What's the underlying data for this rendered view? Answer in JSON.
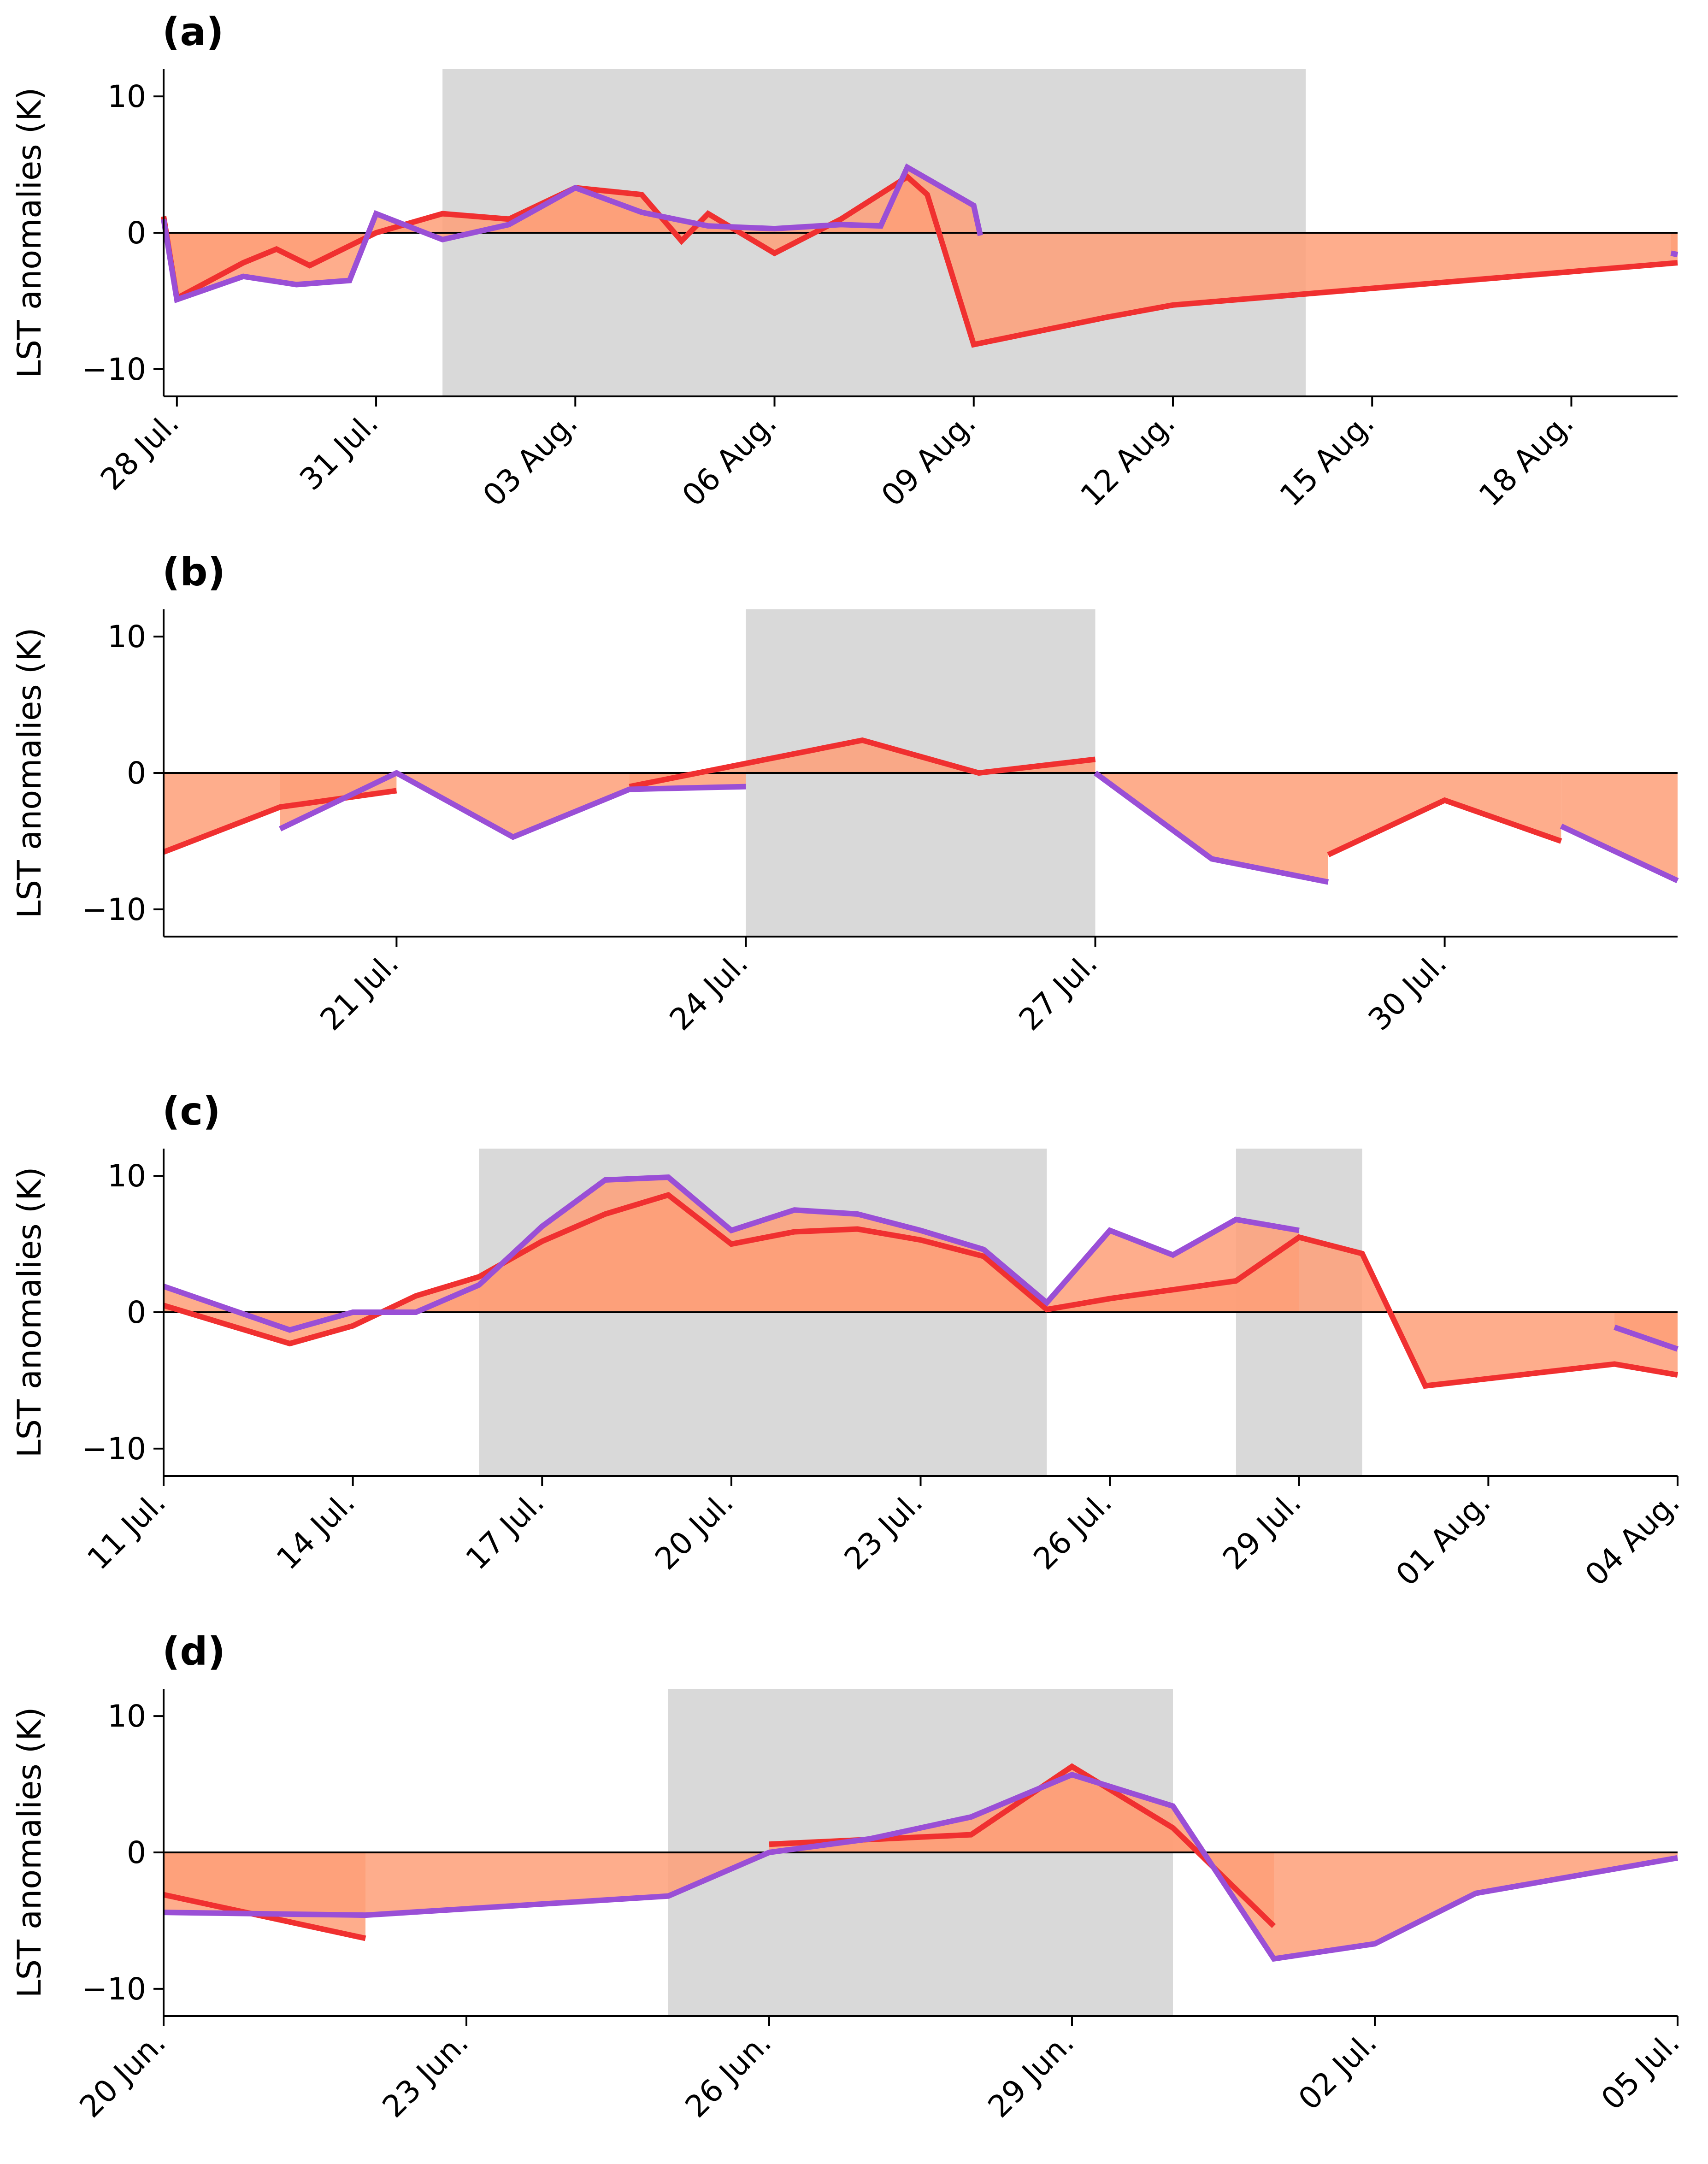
{
  "figure": {
    "type": "time-series panels",
    "colors": {
      "red_series": "#f03030",
      "purple_series": "#9a4fd6",
      "fill": "#fe9f78",
      "shade": "#d9d9d9",
      "zero_line": "#000000"
    }
  },
  "chart_data": [
    {
      "type": "line",
      "panel_label": "(a)",
      "ylabel": "LST anomalies (K)",
      "xlim": [
        27.8,
        50.6
      ],
      "x_unit": "days from 1 Jul (day 1 = 1 Jul.)",
      "ylim": [
        -12,
        12
      ],
      "yticks": [
        10,
        0,
        -10
      ],
      "ytick_labels": [
        "10",
        "0",
        "−10"
      ],
      "xticks": [
        28,
        31,
        34,
        37,
        40,
        43,
        46,
        49
      ],
      "xtick_labels": [
        "28 Jul.",
        "31 Jul.",
        "03 Aug.",
        "06 Aug.",
        "09 Aug.",
        "12 Aug.",
        "15 Aug.",
        "18 Aug."
      ],
      "shaded_periods": [
        [
          32,
          45
        ]
      ],
      "grid": false,
      "series": [
        {
          "color": "red",
          "segments": [
            [
              [
                27.8,
                1.2
              ],
              [
                28,
                -4.8
              ],
              [
                29,
                -2.2
              ],
              [
                29.5,
                -1.2
              ],
              [
                30,
                -2.4
              ],
              [
                31,
                0
              ],
              [
                32,
                1.4
              ],
              [
                33,
                1
              ],
              [
                34,
                3.3
              ],
              [
                35,
                2.8
              ],
              [
                35.6,
                -0.6
              ],
              [
                36,
                1.4
              ],
              [
                37,
                -1.5
              ],
              [
                38,
                1
              ],
              [
                39,
                4.1
              ],
              [
                39.3,
                2.8
              ],
              [
                40,
                -8.2
              ],
              [
                42,
                -6.2
              ],
              [
                43,
                -5.3
              ],
              [
                50.6,
                -2.2
              ]
            ]
          ]
        },
        {
          "color": "purple",
          "segments": [
            [
              [
                27.8,
                1
              ],
              [
                28,
                -4.9
              ],
              [
                29,
                -3.2
              ],
              [
                29.8,
                -3.8
              ],
              [
                30.6,
                -3.5
              ],
              [
                31,
                1.4
              ],
              [
                32,
                -0.5
              ],
              [
                33,
                0.6
              ],
              [
                34,
                3.3
              ],
              [
                35,
                1.5
              ],
              [
                36,
                0.5
              ],
              [
                37,
                0.3
              ],
              [
                38,
                0.6
              ],
              [
                38.6,
                0.5
              ],
              [
                39,
                4.8
              ],
              [
                40,
                2
              ],
              [
                40.1,
                -0.2
              ]
            ],
            [
              [
                50.5,
                -1.5
              ],
              [
                50.6,
                -1.6
              ]
            ]
          ]
        }
      ]
    },
    {
      "type": "line",
      "panel_label": "(b)",
      "ylabel": "LST anomalies (K)",
      "xlim": [
        19,
        32
      ],
      "x_unit": "days from 1 Jul (day 1 = 1 Jul.)",
      "ylim": [
        -12,
        12
      ],
      "yticks": [
        10,
        0,
        -10
      ],
      "ytick_labels": [
        "10",
        "0",
        "−10"
      ],
      "xticks": [
        21,
        24,
        27,
        30
      ],
      "xtick_labels": [
        "21 Jul.",
        "24 Jul.",
        "27 Jul.",
        "30 Jul."
      ],
      "shaded_periods": [
        [
          24,
          27
        ]
      ],
      "grid": false,
      "series": [
        {
          "color": "red",
          "segments": [
            [
              [
                19,
                -5.8
              ],
              [
                20,
                -2.5
              ],
              [
                21,
                -1.3
              ]
            ],
            [
              [
                23,
                -1
              ],
              [
                25,
                2.4
              ],
              [
                26,
                0
              ],
              [
                27,
                1
              ]
            ],
            [
              [
                29,
                -6
              ],
              [
                30,
                -2
              ],
              [
                31,
                -5
              ]
            ]
          ]
        },
        {
          "color": "purple",
          "segments": [
            [
              [
                20,
                -4.1
              ],
              [
                21,
                0
              ],
              [
                22,
                -4.7
              ],
              [
                23,
                -1.2
              ],
              [
                24,
                -1
              ]
            ],
            [
              [
                27,
                0
              ],
              [
                28,
                -6.3
              ],
              [
                29,
                -8
              ]
            ],
            [
              [
                31,
                -3.9
              ],
              [
                32,
                -7.9
              ]
            ]
          ]
        }
      ]
    },
    {
      "type": "line",
      "panel_label": "(c)",
      "ylabel": "LST anomalies (K)",
      "xlim": [
        11,
        35
      ],
      "x_unit": "days from 1 Jul (day 1 = 1 Jul.)",
      "ylim": [
        -12,
        12
      ],
      "yticks": [
        10,
        0,
        -10
      ],
      "ytick_labels": [
        "10",
        "0",
        "−10"
      ],
      "xticks": [
        11,
        14,
        17,
        20,
        23,
        26,
        29,
        32,
        35
      ],
      "xtick_labels": [
        "11 Jul.",
        "14 Jul.",
        "17 Jul.",
        "20 Jul.",
        "23 Jul.",
        "26 Jul.",
        "29 Jul.",
        "01 Aug.",
        "04 Aug."
      ],
      "shaded_periods": [
        [
          16,
          25
        ],
        [
          28,
          30
        ]
      ],
      "grid": false,
      "series": [
        {
          "color": "red",
          "segments": [
            [
              [
                11,
                0.5
              ],
              [
                13,
                -2.3
              ],
              [
                14,
                -1
              ],
              [
                15,
                1.2
              ],
              [
                16,
                2.6
              ],
              [
                17,
                5.2
              ],
              [
                18,
                7.2
              ],
              [
                19,
                8.6
              ],
              [
                20,
                5
              ],
              [
                21,
                5.9
              ],
              [
                22,
                6.1
              ],
              [
                23,
                5.3
              ],
              [
                24,
                4.1
              ],
              [
                25,
                0.2
              ],
              [
                26,
                1
              ],
              [
                28,
                2.3
              ],
              [
                29,
                5.5
              ],
              [
                30,
                4.3
              ],
              [
                31,
                -5.4
              ],
              [
                34,
                -3.8
              ],
              [
                35,
                -4.6
              ]
            ]
          ]
        },
        {
          "color": "purple",
          "segments": [
            [
              [
                11,
                1.9
              ],
              [
                13,
                -1.3
              ],
              [
                14,
                0
              ],
              [
                15,
                0
              ],
              [
                16,
                2
              ],
              [
                17,
                6.3
              ],
              [
                18,
                9.7
              ],
              [
                19,
                9.9
              ],
              [
                20,
                6
              ],
              [
                21,
                7.5
              ],
              [
                22,
                7.2
              ],
              [
                23,
                6
              ],
              [
                24,
                4.6
              ],
              [
                25,
                0.7
              ],
              [
                26,
                6
              ],
              [
                27,
                4.2
              ],
              [
                28,
                6.8
              ],
              [
                29,
                6
              ]
            ],
            [
              [
                34,
                -1.1
              ],
              [
                35,
                -2.7
              ]
            ]
          ]
        }
      ]
    },
    {
      "type": "line",
      "panel_label": "(d)",
      "ylabel": "LST anomalies (K)",
      "xlim": [
        20,
        35
      ],
      "x_unit": "days from 1 Jun (day 1 = 1 Jun.)",
      "ylim": [
        -12,
        12
      ],
      "yticks": [
        10,
        0,
        -10
      ],
      "ytick_labels": [
        "10",
        "0",
        "−10"
      ],
      "xticks": [
        20,
        23,
        26,
        29,
        32,
        35
      ],
      "xtick_labels": [
        "20 Jun.",
        "23 Jun.",
        "26 Jun.",
        "29 Jun.",
        "02 Jul.",
        "05 Jul."
      ],
      "shaded_periods": [
        [
          25,
          30
        ]
      ],
      "grid": false,
      "series": [
        {
          "color": "red",
          "segments": [
            [
              [
                20,
                -3.1
              ],
              [
                22,
                -6.3
              ]
            ],
            [
              [
                26,
                0.6
              ],
              [
                28,
                1.3
              ],
              [
                29,
                6.3
              ],
              [
                30,
                1.8
              ],
              [
                31,
                -5.4
              ]
            ]
          ]
        },
        {
          "color": "purple",
          "segments": [
            [
              [
                20,
                -4.4
              ],
              [
                22,
                -4.6
              ],
              [
                25,
                -3.2
              ],
              [
                26,
                0
              ],
              [
                27,
                1
              ],
              [
                28,
                2.6
              ],
              [
                29,
                5.7
              ],
              [
                30,
                3.4
              ],
              [
                31,
                -7.8
              ],
              [
                32,
                -6.7
              ],
              [
                33,
                -3
              ],
              [
                35,
                -0.4
              ]
            ]
          ]
        }
      ]
    }
  ]
}
